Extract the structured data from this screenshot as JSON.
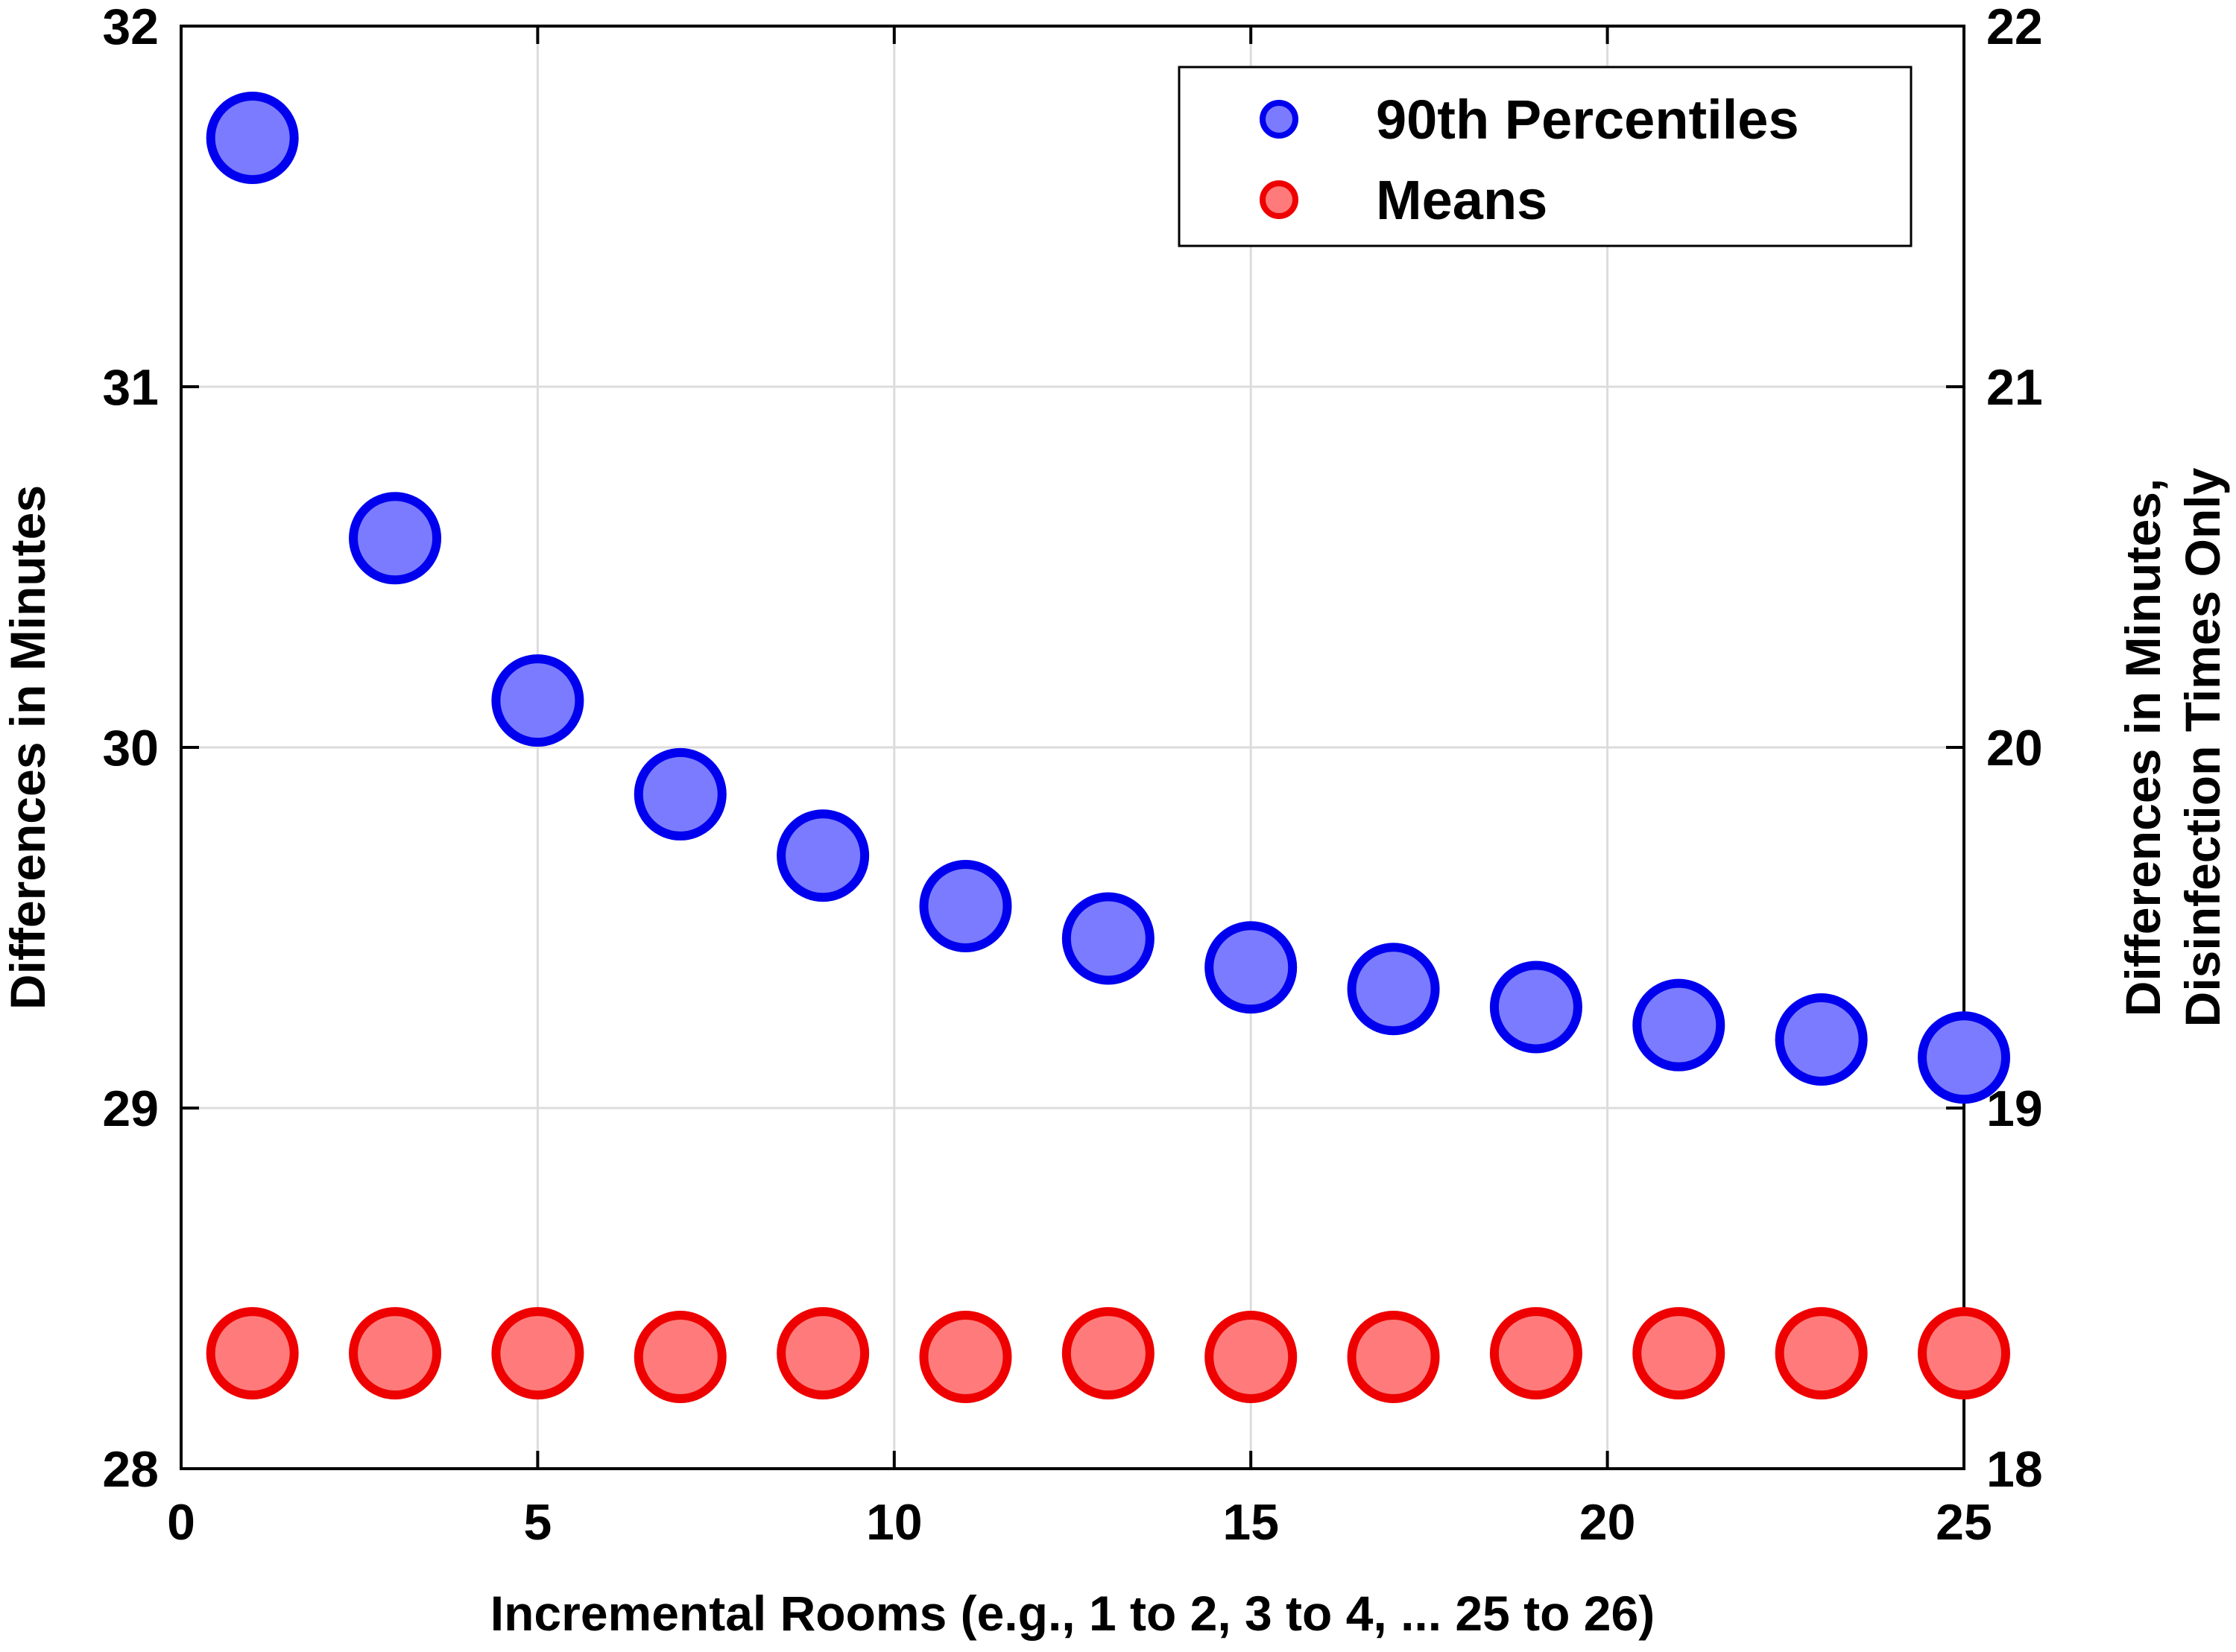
{
  "chart_data": {
    "type": "scatter",
    "xlabel": "Incremental Rooms (e.g., 1 to 2, 3 to 4, ... 25 to 26)",
    "ylabel": "Differences in Minutes",
    "y2label_line1": "Differences in Minutes,",
    "y2label_line2": "Disinfection Times Only",
    "xlim": [
      0,
      25
    ],
    "ylim": [
      28,
      32
    ],
    "y2lim": [
      18,
      22
    ],
    "xticks": [
      "0",
      "5",
      "10",
      "15",
      "20",
      "25"
    ],
    "yticks": [
      "28",
      "29",
      "30",
      "31",
      "32"
    ],
    "y2ticks": [
      "18",
      "19",
      "20",
      "21",
      "22"
    ],
    "grid": true,
    "legend_position": "top-right",
    "x": [
      1,
      3,
      5,
      7,
      9,
      11,
      13,
      15,
      17,
      19,
      21,
      23,
      25
    ],
    "series": [
      {
        "name": "90th Percentiles",
        "axis": "left",
        "color": "#0000ee",
        "fill": "#7b7bff",
        "values": [
          31.69,
          30.58,
          30.13,
          29.87,
          29.7,
          29.56,
          29.47,
          29.39,
          29.33,
          29.28,
          29.23,
          29.19,
          29.14
        ]
      },
      {
        "name": "Means",
        "axis": "left",
        "color": "#ee0000",
        "fill": "#ff7b7b",
        "values": [
          28.32,
          28.32,
          28.32,
          28.31,
          28.32,
          28.31,
          28.32,
          28.31,
          28.31,
          28.32,
          28.32,
          28.32,
          28.32
        ]
      }
    ]
  }
}
